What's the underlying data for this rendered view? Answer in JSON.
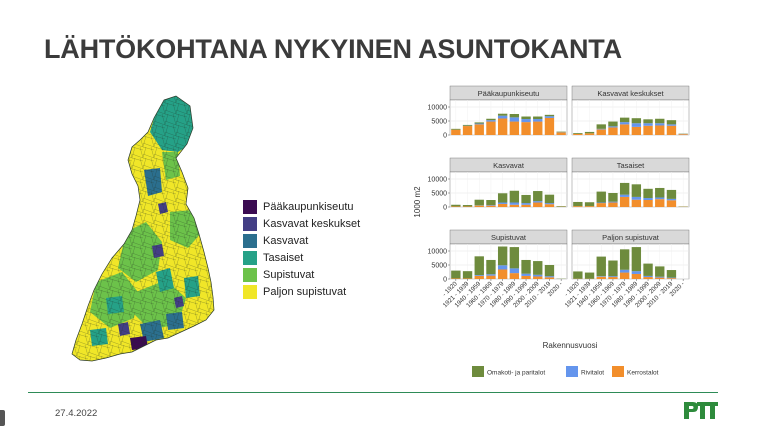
{
  "slide": {
    "title": "LÄHTÖKOHTANA NYKYINEN ASUNTOKANTA",
    "date": "27.4.2022",
    "logo_text": "PTT"
  },
  "map_legend": {
    "items": [
      {
        "label": "Pääkaupunkiseutu",
        "color": "#3b0b52"
      },
      {
        "label": "Kasvavat keskukset",
        "color": "#433e85"
      },
      {
        "label": "Kasvavat",
        "color": "#2b6f8e"
      },
      {
        "label": "Tasaiset",
        "color": "#25a187"
      },
      {
        "label": "Supistuvat",
        "color": "#6cc24a"
      },
      {
        "label": "Paljon supistuvat",
        "color": "#f0e628"
      }
    ]
  },
  "chart_data": {
    "type": "bar",
    "stacked": true,
    "facets": [
      "Pääkaupunkiseutu",
      "Kasvavat keskukset",
      "Kasvavat",
      "Tasaiset",
      "Supistuvat",
      "Paljon supistuvat"
    ],
    "categories": [
      "- 1920",
      "1921 - 1939",
      "1940 - 1959",
      "1960 - 1969",
      "1970 - 1979",
      "1980 - 1989",
      "1990 - 1999",
      "2000 - 2009",
      "2010 - 2019",
      "2020 -"
    ],
    "series_colors": {
      "Omakoti- ja paritalot": "#6e8b3d",
      "Rivitalot": "#6495ed",
      "Kerrostalot": "#f28e2b"
    },
    "series_order": [
      "Omakoti- ja paritalot",
      "Rivitalot",
      "Kerrostalot"
    ],
    "ylabel": "1000 m2",
    "xlabel": "Rakennusvuosi",
    "ylim": [
      0,
      12500
    ],
    "yticks": [
      0,
      5000,
      10000
    ],
    "grid": true,
    "legend_position": "bottom",
    "panels": [
      {
        "name": "Pääkaupunkiseutu",
        "series": [
          {
            "name": "Omakoti- ja paritalot",
            "values": [
              300,
              300,
              400,
              500,
              700,
              1200,
              900,
              900,
              500,
              200
            ]
          },
          {
            "name": "Rivitalot",
            "values": [
              0,
              100,
              300,
              500,
              1000,
              1500,
              1100,
              900,
              600,
              100
            ]
          },
          {
            "name": "Kerrostalot",
            "values": [
              1900,
              3200,
              3800,
              4800,
              5900,
              4800,
              4600,
              4800,
              6100,
              900
            ]
          }
        ]
      },
      {
        "name": "Kasvavat keskukset",
        "series": [
          {
            "name": "Omakoti- ja paritalot",
            "values": [
              300,
              500,
              1600,
              1700,
              1600,
              1800,
              1400,
              1600,
              1500,
              100
            ]
          },
          {
            "name": "Rivitalot",
            "values": [
              0,
              0,
              200,
              400,
              800,
              1300,
              900,
              800,
              500,
              100
            ]
          },
          {
            "name": "Kerrostalot",
            "values": [
              400,
              600,
              2000,
              2700,
              3800,
              2900,
              3300,
              3400,
              3300,
              300
            ]
          }
        ]
      },
      {
        "name": "Kasvavat",
        "series": [
          {
            "name": "Omakoti- ja paritalot",
            "values": [
              600,
              500,
              2000,
              1800,
              3300,
              4200,
              2900,
              3600,
              3000,
              200
            ]
          },
          {
            "name": "Rivitalot",
            "values": [
              0,
              0,
              100,
              200,
              500,
              800,
              600,
              500,
              400,
              0
            ]
          },
          {
            "name": "Kerrostalot",
            "values": [
              200,
              200,
              500,
              500,
              1100,
              800,
              800,
              1600,
              1000,
              100
            ]
          }
        ]
      },
      {
        "name": "Tasaiset",
        "series": [
          {
            "name": "Omakoti- ja paritalot",
            "values": [
              1500,
              1400,
              3900,
              3100,
              4200,
              4500,
              3300,
              3400,
              3200,
              100
            ]
          },
          {
            "name": "Rivitalot",
            "values": [
              0,
              0,
              200,
              300,
              800,
              1000,
              700,
              600,
              500,
              0
            ]
          },
          {
            "name": "Kerrostalot",
            "values": [
              300,
              300,
              1400,
              1600,
              3600,
              2600,
              2500,
              2800,
              2400,
              100
            ]
          }
        ]
      },
      {
        "name": "Supistuvat",
        "series": [
          {
            "name": "Omakoti- ja paritalot",
            "values": [
              2800,
              2600,
              6700,
              5100,
              6700,
              7600,
              4900,
              4900,
              4000,
              100
            ]
          },
          {
            "name": "Rivitalot",
            "values": [
              0,
              0,
              300,
              500,
              1500,
              1700,
              800,
              600,
              400,
              0
            ]
          },
          {
            "name": "Kerrostalot",
            "values": [
              200,
              200,
              1100,
              1200,
              3400,
              2100,
              1100,
              900,
              600,
              0
            ]
          }
        ]
      },
      {
        "name": "Paljon supistuvat",
        "series": [
          {
            "name": "Omakoti- ja paritalot",
            "values": [
              2600,
              2200,
              7000,
              5600,
              7300,
              8600,
              4400,
              3700,
              2700,
              0
            ]
          },
          {
            "name": "Rivitalot",
            "values": [
              0,
              0,
              200,
              300,
              1000,
              1000,
              400,
              300,
              200,
              0
            ]
          },
          {
            "name": "Kerrostalot",
            "values": [
              100,
              100,
              800,
              700,
              2300,
              1800,
              700,
              500,
              300,
              0
            ]
          }
        ]
      }
    ]
  }
}
